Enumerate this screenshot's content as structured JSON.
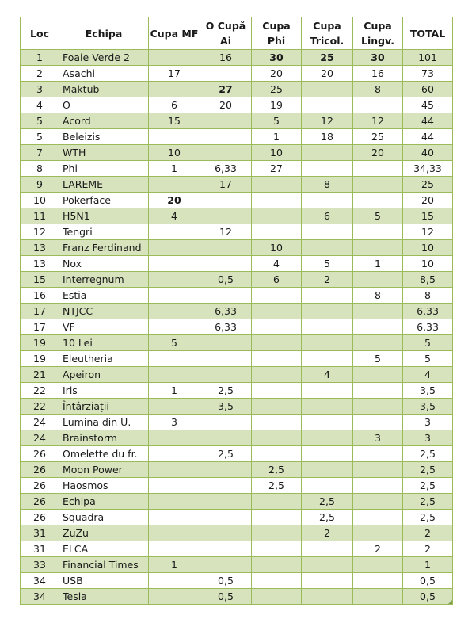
{
  "headers": {
    "loc": "Loc",
    "echipa": "Echipa",
    "cupa_mf": "Cupa MF",
    "o_cupa_ai_1": "O Cupă",
    "o_cupa_ai_2": "Ai",
    "cupa_phi": "Cupa Phi",
    "cupa_tricol_1": "Cupa",
    "cupa_tricol_2": "Tricol.",
    "cupa_lingv_1": "Cupa",
    "cupa_lingv_2": "Lingv.",
    "total": "TOTAL"
  },
  "rows": [
    {
      "loc": "1",
      "team": "Foaie Verde 2",
      "mf": "",
      "ai": "16",
      "phi": "30",
      "tri": "25",
      "lin": "30",
      "total": "101",
      "bold": [
        "phi",
        "tri",
        "lin"
      ]
    },
    {
      "loc": "2",
      "team": "Asachi",
      "mf": "17",
      "ai": "",
      "phi": "20",
      "tri": "20",
      "lin": "16",
      "total": "73",
      "bold": []
    },
    {
      "loc": "3",
      "team": "Maktub",
      "mf": "",
      "ai": "27",
      "phi": "25",
      "tri": "",
      "lin": "8",
      "total": "60",
      "bold": [
        "ai"
      ]
    },
    {
      "loc": "4",
      "team": "O",
      "mf": "6",
      "ai": "20",
      "phi": "19",
      "tri": "",
      "lin": "",
      "total": "45",
      "bold": []
    },
    {
      "loc": "5",
      "team": "Acord",
      "mf": "15",
      "ai": "",
      "phi": "5",
      "tri": "12",
      "lin": "12",
      "total": "44",
      "bold": []
    },
    {
      "loc": "5",
      "team": "Beleizis",
      "mf": "",
      "ai": "",
      "phi": "1",
      "tri": "18",
      "lin": "25",
      "total": "44",
      "bold": []
    },
    {
      "loc": "7",
      "team": "WTH",
      "mf": "10",
      "ai": "",
      "phi": "10",
      "tri": "",
      "lin": "20",
      "total": "40",
      "bold": []
    },
    {
      "loc": "8",
      "team": "Phi",
      "mf": "1",
      "ai": "6,33",
      "phi": "27",
      "tri": "",
      "lin": "",
      "total": "34,33",
      "bold": []
    },
    {
      "loc": "9",
      "team": "LAREME",
      "mf": "",
      "ai": "17",
      "phi": "",
      "tri": "8",
      "lin": "",
      "total": "25",
      "bold": []
    },
    {
      "loc": "10",
      "team": "Pokerface",
      "mf": "20",
      "ai": "",
      "phi": "",
      "tri": "",
      "lin": "",
      "total": "20",
      "bold": [
        "mf"
      ]
    },
    {
      "loc": "11",
      "team": "H5N1",
      "mf": "4",
      "ai": "",
      "phi": "",
      "tri": "6",
      "lin": "5",
      "total": "15",
      "bold": []
    },
    {
      "loc": "12",
      "team": "Tengri",
      "mf": "",
      "ai": "12",
      "phi": "",
      "tri": "",
      "lin": "",
      "total": "12",
      "bold": []
    },
    {
      "loc": "13",
      "team": "Franz Ferdinand",
      "mf": "",
      "ai": "",
      "phi": "10",
      "tri": "",
      "lin": "",
      "total": "10",
      "bold": []
    },
    {
      "loc": "13",
      "team": "Nox",
      "mf": "",
      "ai": "",
      "phi": "4",
      "tri": "5",
      "lin": "1",
      "total": "10",
      "bold": []
    },
    {
      "loc": "15",
      "team": "Interregnum",
      "mf": "",
      "ai": "0,5",
      "phi": "6",
      "tri": "2",
      "lin": "",
      "total": "8,5",
      "bold": []
    },
    {
      "loc": "16",
      "team": "Estia",
      "mf": "",
      "ai": "",
      "phi": "",
      "tri": "",
      "lin": "8",
      "total": "8",
      "bold": []
    },
    {
      "loc": "17",
      "team": "NTJCC",
      "mf": "",
      "ai": "6,33",
      "phi": "",
      "tri": "",
      "lin": "",
      "total": "6,33",
      "bold": []
    },
    {
      "loc": "17",
      "team": "VF",
      "mf": "",
      "ai": "6,33",
      "phi": "",
      "tri": "",
      "lin": "",
      "total": "6,33",
      "bold": []
    },
    {
      "loc": "19",
      "team": "10 Lei",
      "mf": "5",
      "ai": "",
      "phi": "",
      "tri": "",
      "lin": "",
      "total": "5",
      "bold": []
    },
    {
      "loc": "19",
      "team": "Eleutheria",
      "mf": "",
      "ai": "",
      "phi": "",
      "tri": "",
      "lin": "5",
      "total": "5",
      "bold": []
    },
    {
      "loc": "21",
      "team": "Apeiron",
      "mf": "",
      "ai": "",
      "phi": "",
      "tri": "4",
      "lin": "",
      "total": "4",
      "bold": []
    },
    {
      "loc": "22",
      "team": "Iris",
      "mf": "1",
      "ai": "2,5",
      "phi": "",
      "tri": "",
      "lin": "",
      "total": "3,5",
      "bold": []
    },
    {
      "loc": "22",
      "team": "Întârziații",
      "mf": "",
      "ai": "3,5",
      "phi": "",
      "tri": "",
      "lin": "",
      "total": "3,5",
      "bold": []
    },
    {
      "loc": "24",
      "team": "Lumina din U.",
      "mf": "3",
      "ai": "",
      "phi": "",
      "tri": "",
      "lin": "",
      "total": "3",
      "bold": []
    },
    {
      "loc": "24",
      "team": "Brainstorm",
      "mf": "",
      "ai": "",
      "phi": "",
      "tri": "",
      "lin": "3",
      "total": "3",
      "bold": []
    },
    {
      "loc": "26",
      "team": "Omelette du fr.",
      "mf": "",
      "ai": "2,5",
      "phi": "",
      "tri": "",
      "lin": "",
      "total": "2,5",
      "bold": []
    },
    {
      "loc": "26",
      "team": "Moon Power",
      "mf": "",
      "ai": "",
      "phi": "2,5",
      "tri": "",
      "lin": "",
      "total": "2,5",
      "bold": []
    },
    {
      "loc": "26",
      "team": "Haosmos",
      "mf": "",
      "ai": "",
      "phi": "2,5",
      "tri": "",
      "lin": "",
      "total": "2,5",
      "bold": []
    },
    {
      "loc": "26",
      "team": "Echipa",
      "mf": "",
      "ai": "",
      "phi": "",
      "tri": "2,5",
      "lin": "",
      "total": "2,5",
      "bold": []
    },
    {
      "loc": "26",
      "team": "Squadra",
      "mf": "",
      "ai": "",
      "phi": "",
      "tri": "2,5",
      "lin": "",
      "total": "2,5",
      "bold": []
    },
    {
      "loc": "31",
      "team": "ZuZu",
      "mf": "",
      "ai": "",
      "phi": "",
      "tri": "2",
      "lin": "",
      "total": "2",
      "bold": []
    },
    {
      "loc": "31",
      "team": "ELCA",
      "mf": "",
      "ai": "",
      "phi": "",
      "tri": "",
      "lin": "2",
      "total": "2",
      "bold": []
    },
    {
      "loc": "33",
      "team": "Financial Times",
      "mf": "1",
      "ai": "",
      "phi": "",
      "tri": "",
      "lin": "",
      "total": "1",
      "bold": []
    },
    {
      "loc": "34",
      "team": "USB",
      "mf": "",
      "ai": "0,5",
      "phi": "",
      "tri": "",
      "lin": "",
      "total": "0,5",
      "bold": []
    },
    {
      "loc": "34",
      "team": "Tesla",
      "mf": "",
      "ai": "0,5",
      "phi": "",
      "tri": "",
      "lin": "",
      "total": "0,5",
      "bold": []
    }
  ]
}
